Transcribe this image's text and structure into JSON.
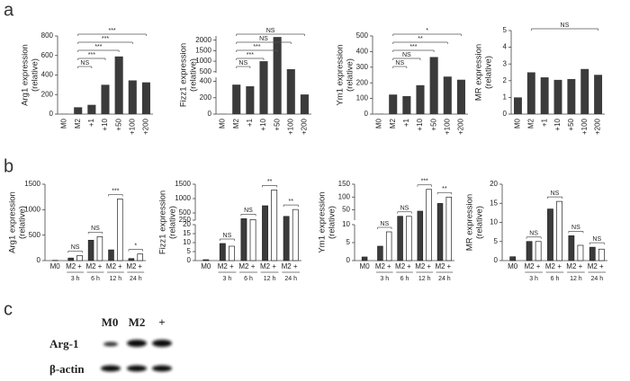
{
  "panel_labels": [
    "a",
    "b",
    "c"
  ],
  "chart_data": [
    {
      "type": "bar",
      "ylabel": [
        "Arg1 expression",
        "(relative)"
      ],
      "categories": [
        "M0",
        "M2",
        "+1",
        "+10",
        "+50",
        "+100",
        "+200"
      ],
      "values": [
        2,
        70,
        95,
        300,
        590,
        345,
        325
      ],
      "color": "#3b3b3b",
      "ylim": [
        0,
        800
      ],
      "yticks": [
        0,
        200,
        400,
        600,
        800
      ],
      "annotations": [
        {
          "label": "***",
          "from": "M2",
          "to": "+200"
        },
        {
          "label": "***",
          "from": "M2",
          "to": "+100"
        },
        {
          "label": "***",
          "from": "M2",
          "to": "+50"
        },
        {
          "label": "***",
          "from": "M2",
          "to": "+10"
        },
        {
          "label": "NS",
          "from": "M2",
          "to": "+1"
        }
      ]
    },
    {
      "type": "bar",
      "ylabel": [
        "Fizz1 expression",
        "(relative)"
      ],
      "categories": [
        "M0",
        "M2",
        "+1",
        "+10",
        "+50",
        "+100",
        "+200"
      ],
      "values": [
        2,
        360,
        340,
        1000,
        2150,
        620,
        240
      ],
      "color": "#3b3b3b",
      "ysegments": [
        [
          0,
          450
        ],
        [
          450,
          2200
        ]
      ],
      "yticks": [
        0,
        200,
        400,
        500,
        1000,
        1500,
        2000
      ],
      "annotations": [
        {
          "label": "NS",
          "from": "M2",
          "to": "+200"
        },
        {
          "label": "NS",
          "from": "M2",
          "to": "+100"
        },
        {
          "label": "***",
          "from": "M2",
          "to": "+50"
        },
        {
          "label": "***",
          "from": "M2",
          "to": "+10"
        },
        {
          "label": "NS",
          "from": "M2",
          "to": "+1"
        }
      ]
    },
    {
      "type": "bar",
      "ylabel": [
        "Ym1 expression",
        "(relative)"
      ],
      "categories": [
        "M0",
        "M2",
        "+1",
        "+10",
        "+50",
        "+100",
        "+200"
      ],
      "values": [
        2,
        125,
        115,
        185,
        365,
        240,
        220
      ],
      "color": "#3b3b3b",
      "ylim": [
        0,
        500
      ],
      "yticks": [
        0,
        100,
        200,
        300,
        400,
        500
      ],
      "annotations": [
        {
          "label": "*",
          "from": "M2",
          "to": "+200"
        },
        {
          "label": "**",
          "from": "M2",
          "to": "+100"
        },
        {
          "label": "***",
          "from": "M2",
          "to": "+50"
        },
        {
          "label": "NS",
          "from": "M2",
          "to": "+10"
        },
        {
          "label": "NS",
          "from": "M2",
          "to": "+1"
        }
      ]
    },
    {
      "type": "bar",
      "ylabel": [
        "MR expression",
        "(relative)"
      ],
      "categories": [
        "M0",
        "M2",
        "+1",
        "+10",
        "+50",
        "+100",
        "+200"
      ],
      "values": [
        1,
        2.5,
        2.2,
        2.05,
        2.1,
        2.7,
        2.35
      ],
      "color": "#3b3b3b",
      "ylim": [
        0,
        5
      ],
      "yticks": [
        0,
        1,
        2,
        3,
        4,
        5
      ],
      "annotations": [
        {
          "label": "NS",
          "from": "M2",
          "to": "+200"
        }
      ]
    },
    {
      "type": "grouped_bar",
      "ylabel": [
        "Arg1 expression",
        "(relative)"
      ],
      "categories": [
        null,
        "3 h",
        "6 h",
        "12 h",
        "24 h"
      ],
      "series": [
        {
          "name": "M0",
          "color": "#3b3b3b",
          "values": [
            5,
            null,
            null,
            null,
            null
          ]
        },
        {
          "name": "M2",
          "color": "#3b3b3b",
          "values": [
            null,
            50,
            400,
            210,
            40
          ]
        },
        {
          "name": "+",
          "color": "#ffffff",
          "values": [
            null,
            100,
            470,
            1210,
            130
          ]
        }
      ],
      "ylim": [
        0,
        1500
      ],
      "yticks": [
        0,
        500,
        1000,
        1500
      ],
      "annotations": [
        {
          "label": "NS",
          "from": "3 h",
          "to": "3 h"
        },
        {
          "label": "NS",
          "from": "6 h",
          "to": "6 h"
        },
        {
          "label": "***",
          "from": "12 h",
          "to": "12 h"
        },
        {
          "label": "*",
          "from": "24 h",
          "to": "24 h"
        }
      ]
    },
    {
      "type": "grouped_bar",
      "ylabel": [
        "Fizz1 expression",
        "(relative)"
      ],
      "categories": [
        null,
        "3 h",
        "6 h",
        "12 h",
        "24 h"
      ],
      "series": [
        {
          "name": "M0",
          "color": "#3b3b3b",
          "values": [
            0.5,
            null,
            null,
            null,
            null
          ]
        },
        {
          "name": "M2",
          "color": "#3b3b3b",
          "values": [
            null,
            9.5,
            300,
            750,
            380
          ]
        },
        {
          "name": "+",
          "color": "#ffffff",
          "values": [
            null,
            8,
            270,
            1300,
            620
          ]
        }
      ],
      "ysegments": [
        [
          0,
          20
        ],
        [
          250,
          1500
        ]
      ],
      "yticks": [
        0,
        5,
        10,
        15,
        20,
        250,
        500,
        1000,
        1500
      ],
      "annotations": [
        {
          "label": "NS",
          "from": "3 h",
          "to": "3 h"
        },
        {
          "label": "NS",
          "from": "6 h",
          "to": "6 h"
        },
        {
          "label": "**",
          "from": "12 h",
          "to": "12 h"
        },
        {
          "label": "**",
          "from": "24 h",
          "to": "24 h"
        }
      ]
    },
    {
      "type": "grouped_bar",
      "ylabel": [
        "Ym1 expression",
        "(relative)"
      ],
      "categories": [
        null,
        "3 h",
        "6 h",
        "12 h",
        "24 h"
      ],
      "series": [
        {
          "name": "M0",
          "color": "#3b3b3b",
          "values": [
            1,
            null,
            null,
            null,
            null
          ]
        },
        {
          "name": "M2",
          "color": "#3b3b3b",
          "values": [
            null,
            4,
            25,
            45,
            75
          ]
        },
        {
          "name": "+",
          "color": "#ffffff",
          "values": [
            null,
            8,
            25,
            130,
            100
          ]
        }
      ],
      "ysegments": [
        [
          0,
          10
        ],
        [
          10,
          150
        ]
      ],
      "yticks": [
        0,
        5,
        10,
        50,
        100,
        150
      ],
      "annotations": [
        {
          "label": "NS",
          "from": "3 h",
          "to": "3 h"
        },
        {
          "label": "NS",
          "from": "6 h",
          "to": "6 h"
        },
        {
          "label": "***",
          "from": "12 h",
          "to": "12 h"
        },
        {
          "label": "**",
          "from": "24 h",
          "to": "24 h"
        }
      ]
    },
    {
      "type": "grouped_bar",
      "ylabel": [
        "MR expression",
        "(relative)"
      ],
      "categories": [
        null,
        "3 h",
        "6 h",
        "12 h",
        "24 h"
      ],
      "series": [
        {
          "name": "M0",
          "color": "#3b3b3b",
          "values": [
            1,
            null,
            null,
            null,
            null
          ]
        },
        {
          "name": "M2",
          "color": "#3b3b3b",
          "values": [
            null,
            5,
            13.5,
            6.5,
            3.5
          ]
        },
        {
          "name": "+",
          "color": "#ffffff",
          "values": [
            null,
            5,
            15.5,
            4,
            3
          ]
        }
      ],
      "ylim": [
        0,
        20
      ],
      "yticks": [
        0,
        5,
        10,
        15,
        20
      ],
      "annotations": [
        {
          "label": "NS",
          "from": "3 h",
          "to": "3 h"
        },
        {
          "label": "NS",
          "from": "6 h",
          "to": "6 h"
        },
        {
          "label": "NS",
          "from": "12 h",
          "to": "12 h"
        },
        {
          "label": "NS",
          "from": "24 h",
          "to": "24 h"
        }
      ]
    }
  ],
  "blot": {
    "lanes": [
      "M0",
      "M2",
      "+"
    ],
    "rows": [
      "Arg-1",
      "β-actin"
    ]
  }
}
